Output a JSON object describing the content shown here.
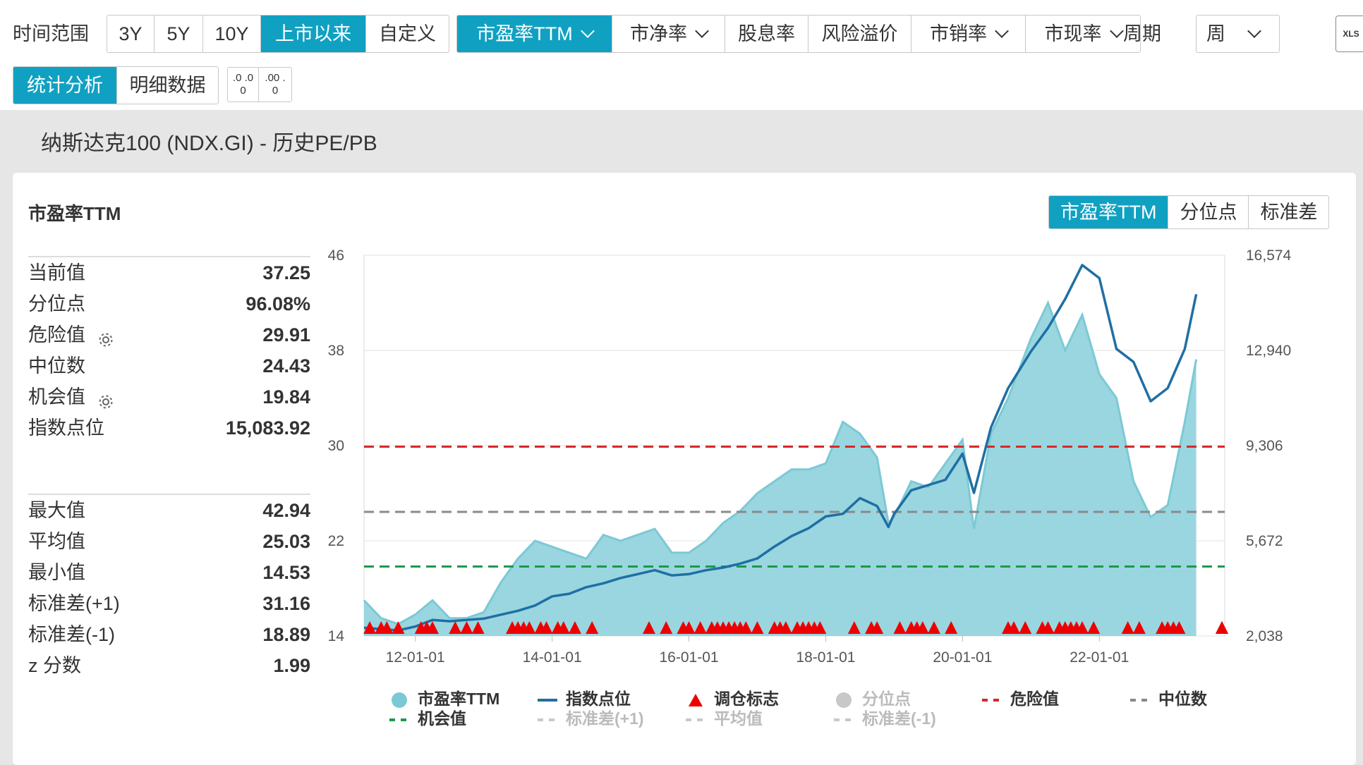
{
  "toolbar": {
    "time_range_label": "时间范围",
    "time_range_options": [
      "3Y",
      "5Y",
      "10Y",
      "上市以来",
      "自定义"
    ],
    "metrics": [
      "市盈率TTM",
      "市净率",
      "股息率",
      "风险溢价",
      "市销率",
      "市现率"
    ],
    "period_label": "周期",
    "period_value": "周",
    "xls_label": "XLS",
    "view_tabs": [
      "统计分析",
      "明细数据"
    ],
    "decimal_decrease": ".0 .00",
    "decimal_increase": ".00 .0"
  },
  "subtitle": "纳斯达克100 (NDX.GI) - 历史PE/PB",
  "card": {
    "title": "市盈率TTM",
    "tabs": [
      "市盈率TTM",
      "分位点",
      "标准差"
    ]
  },
  "stats_top": [
    {
      "label": "当前值",
      "value": "37.25"
    },
    {
      "label": "分位点",
      "value": "96.08%"
    },
    {
      "label": "危险值",
      "value": "29.91",
      "gear": true
    },
    {
      "label": "中位数",
      "value": "24.43"
    },
    {
      "label": "机会值",
      "value": "19.84",
      "gear": true
    },
    {
      "label": "指数点位",
      "value": "15,083.92"
    }
  ],
  "stats_bottom": [
    {
      "label": "最大值",
      "value": "42.94"
    },
    {
      "label": "平均值",
      "value": "25.03"
    },
    {
      "label": "最小值",
      "value": "14.53"
    },
    {
      "label": "标准差(+1)",
      "value": "31.16"
    },
    {
      "label": "标准差(-1)",
      "value": "18.89"
    },
    {
      "label": "z 分数",
      "value": "1.99"
    }
  ],
  "colors": {
    "accent": "#10a1c2",
    "pe_fill": "#9ad6df",
    "pe_line": "#7cc9d5",
    "index_line": "#1f6fa3",
    "danger": "#d62828",
    "median": "#8a8a8a",
    "opportunity": "#1a9a4a",
    "marker": "#ee0000",
    "disabled": "#bbbbbb"
  },
  "chart_data": {
    "type": "area",
    "x_ticks": [
      "12-01-01",
      "14-01-01",
      "16-01-01",
      "18-01-01",
      "20-01-01",
      "22-01-01"
    ],
    "y_left_ticks": [
      "46",
      "38",
      "30",
      "22",
      "14"
    ],
    "y_right_ticks": [
      "16,574",
      "12,940",
      "9,306",
      "5,672",
      "2,038"
    ],
    "y_left_range": [
      14,
      46
    ],
    "y_right_range": [
      2038,
      16574
    ],
    "x_range": [
      "2011-04-01",
      "2023-06-30"
    ],
    "reference_lines": {
      "danger": 29.91,
      "median": 24.43,
      "opportunity": 19.84
    },
    "legend": [
      {
        "name": "市盈率TTM",
        "type": "area",
        "active": true
      },
      {
        "name": "指数点位",
        "type": "line",
        "active": true
      },
      {
        "name": "调仓标志",
        "type": "marker",
        "active": true
      },
      {
        "name": "分位点",
        "type": "dot",
        "active": false
      },
      {
        "name": "危险值",
        "type": "dash",
        "active": true
      },
      {
        "name": "中位数",
        "type": "dash",
        "active": true
      },
      {
        "name": "机会值",
        "type": "dash",
        "active": true
      },
      {
        "name": "标准差(+1)",
        "type": "dash",
        "active": false
      },
      {
        "name": "平均值",
        "type": "dash",
        "active": false
      },
      {
        "name": "标准差(-1)",
        "type": "dash",
        "active": false
      }
    ],
    "series": [
      {
        "name": "市盈率TTM",
        "x": [
          "2011-04",
          "2011-07",
          "2011-10",
          "2012-01",
          "2012-04",
          "2012-07",
          "2012-10",
          "2013-01",
          "2013-04",
          "2013-07",
          "2013-10",
          "2014-01",
          "2014-04",
          "2014-07",
          "2014-10",
          "2015-01",
          "2015-04",
          "2015-07",
          "2015-10",
          "2016-01",
          "2016-04",
          "2016-07",
          "2016-10",
          "2017-01",
          "2017-04",
          "2017-07",
          "2017-10",
          "2018-01",
          "2018-04",
          "2018-07",
          "2018-10",
          "2018-12",
          "2019-01",
          "2019-04",
          "2019-07",
          "2019-10",
          "2020-01",
          "2020-03",
          "2020-06",
          "2020-09",
          "2021-01",
          "2021-04",
          "2021-07",
          "2021-10",
          "2022-01",
          "2022-04",
          "2022-07",
          "2022-10",
          "2023-01",
          "2023-04",
          "2023-06"
        ],
        "values": [
          17,
          15.5,
          15,
          15.8,
          17,
          15.5,
          15.5,
          16,
          18.5,
          20.5,
          22,
          21.5,
          21,
          20.5,
          22.5,
          22,
          22.5,
          23,
          21,
          21,
          22,
          23.5,
          24.5,
          26,
          27,
          28,
          28,
          28.5,
          32,
          31,
          29,
          23.5,
          24,
          27,
          26.5,
          28.5,
          30.5,
          23,
          31,
          34,
          39,
          42,
          38,
          41,
          36,
          34,
          27,
          24,
          25,
          32,
          37.25
        ]
      },
      {
        "name": "指数点位",
        "x": [
          "2011-04",
          "2011-07",
          "2011-10",
          "2012-01",
          "2012-04",
          "2012-07",
          "2012-10",
          "2013-01",
          "2013-04",
          "2013-07",
          "2013-10",
          "2014-01",
          "2014-04",
          "2014-07",
          "2014-10",
          "2015-01",
          "2015-04",
          "2015-07",
          "2015-10",
          "2016-01",
          "2016-04",
          "2016-07",
          "2016-10",
          "2017-01",
          "2017-04",
          "2017-07",
          "2017-10",
          "2018-01",
          "2018-04",
          "2018-07",
          "2018-10",
          "2018-12",
          "2019-01",
          "2019-04",
          "2019-07",
          "2019-10",
          "2020-01",
          "2020-03",
          "2020-06",
          "2020-09",
          "2021-01",
          "2021-04",
          "2021-07",
          "2021-10",
          "2022-01",
          "2022-04",
          "2022-07",
          "2022-10",
          "2023-01",
          "2023-04",
          "2023-06"
        ],
        "values": [
          2350,
          2300,
          2250,
          2400,
          2650,
          2600,
          2650,
          2700,
          2850,
          3000,
          3200,
          3550,
          3650,
          3900,
          4050,
          4250,
          4400,
          4550,
          4350,
          4400,
          4550,
          4650,
          4800,
          5000,
          5450,
          5850,
          6150,
          6600,
          6700,
          7300,
          7000,
          6200,
          6700,
          7600,
          7800,
          8000,
          9000,
          7500,
          10000,
          11500,
          12900,
          13800,
          14900,
          16200,
          15700,
          13000,
          12500,
          11000,
          11500,
          13000,
          15083.92
        ]
      }
    ],
    "rebalance_markers": [
      "2011-05",
      "2011-07",
      "2011-08",
      "2011-10",
      "2012-02",
      "2012-03",
      "2012-04",
      "2012-08",
      "2012-10",
      "2012-12",
      "2013-06",
      "2013-07",
      "2013-08",
      "2013-09",
      "2013-11",
      "2013-12",
      "2014-02",
      "2014-03",
      "2014-05",
      "2014-08",
      "2015-06",
      "2015-09",
      "2015-12",
      "2016-01",
      "2016-03",
      "2016-05",
      "2016-06",
      "2016-07",
      "2016-08",
      "2016-09",
      "2016-10",
      "2016-11",
      "2017-01",
      "2017-04",
      "2017-05",
      "2017-06",
      "2017-08",
      "2017-09",
      "2017-10",
      "2017-11",
      "2017-12",
      "2018-06",
      "2018-09",
      "2018-10",
      "2019-02",
      "2019-04",
      "2019-05",
      "2019-06",
      "2019-08",
      "2019-11",
      "2020-09",
      "2020-10",
      "2020-12",
      "2021-03",
      "2021-04",
      "2021-06",
      "2021-07",
      "2021-08",
      "2021-09",
      "2021-10",
      "2021-12",
      "2022-06",
      "2022-08",
      "2022-12",
      "2023-01",
      "2023-02",
      "2023-03",
      "2024-02",
      "2024-03",
      "2024-04",
      "2024-11"
    ]
  }
}
